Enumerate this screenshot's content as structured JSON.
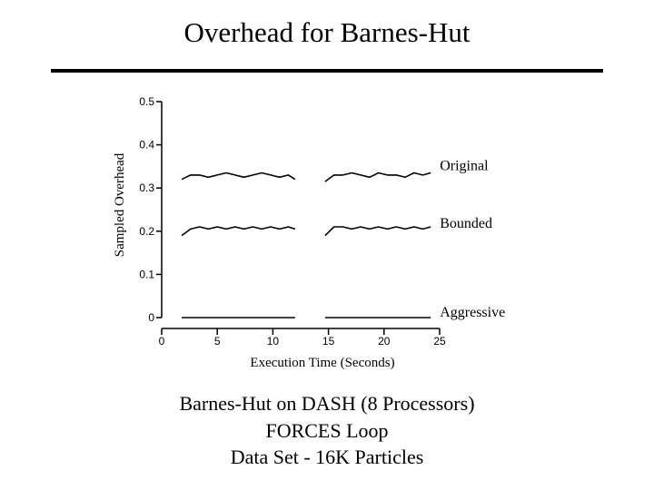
{
  "slide": {
    "title": "Overhead for Barnes-Hut",
    "caption_lines": [
      "Barnes-Hut on DASH (8 Processors)",
      "FORCES Loop",
      "Data Set - 16K Particles"
    ]
  },
  "chart_data": {
    "type": "line",
    "title": "",
    "xlabel": "Execution Time (Seconds)",
    "ylabel": "Sampled Overhead",
    "xlim": [
      0,
      25
    ],
    "ylim": [
      0,
      0.5
    ],
    "x_ticks": [
      0,
      5,
      10,
      15,
      20,
      25
    ],
    "y_ticks": [
      0,
      0.1,
      0.2,
      0.3,
      0.4,
      0.5
    ],
    "y_tick_labels": [
      "0",
      "0.1",
      "0.2",
      "0.3",
      "0.4",
      "0.5"
    ],
    "grid": false,
    "series": [
      {
        "name": "Original",
        "segments": [
          {
            "x": [
              1.8,
              2.6,
              3.4,
              4.2,
              5.0,
              5.8,
              6.6,
              7.4,
              8.2,
              9.0,
              9.8,
              10.6,
              11.4,
              12.0
            ],
            "y": [
              0.32,
              0.33,
              0.33,
              0.325,
              0.33,
              0.335,
              0.33,
              0.325,
              0.33,
              0.335,
              0.33,
              0.325,
              0.33,
              0.32
            ]
          },
          {
            "x": [
              14.7,
              15.5,
              16.3,
              17.1,
              17.9,
              18.7,
              19.5,
              20.3,
              21.1,
              21.9,
              22.7,
              23.5,
              24.2
            ],
            "y": [
              0.315,
              0.33,
              0.33,
              0.335,
              0.33,
              0.325,
              0.335,
              0.33,
              0.33,
              0.325,
              0.335,
              0.33,
              0.335
            ]
          }
        ]
      },
      {
        "name": "Bounded",
        "segments": [
          {
            "x": [
              1.8,
              2.6,
              3.4,
              4.2,
              5.0,
              5.8,
              6.6,
              7.4,
              8.2,
              9.0,
              9.8,
              10.6,
              11.4,
              12.0
            ],
            "y": [
              0.19,
              0.205,
              0.21,
              0.205,
              0.21,
              0.205,
              0.21,
              0.205,
              0.21,
              0.205,
              0.21,
              0.205,
              0.21,
              0.205
            ]
          },
          {
            "x": [
              14.7,
              15.5,
              16.3,
              17.1,
              17.9,
              18.7,
              19.5,
              20.3,
              21.1,
              21.9,
              22.7,
              23.5,
              24.2
            ],
            "y": [
              0.19,
              0.21,
              0.21,
              0.205,
              0.21,
              0.205,
              0.21,
              0.205,
              0.21,
              0.205,
              0.21,
              0.205,
              0.21
            ]
          }
        ]
      },
      {
        "name": "Aggressive",
        "segments": [
          {
            "x": [
              1.8,
              12.0
            ],
            "y": [
              0.0,
              0.0
            ]
          },
          {
            "x": [
              14.7,
              24.2
            ],
            "y": [
              0.0,
              0.0
            ]
          }
        ]
      }
    ]
  }
}
